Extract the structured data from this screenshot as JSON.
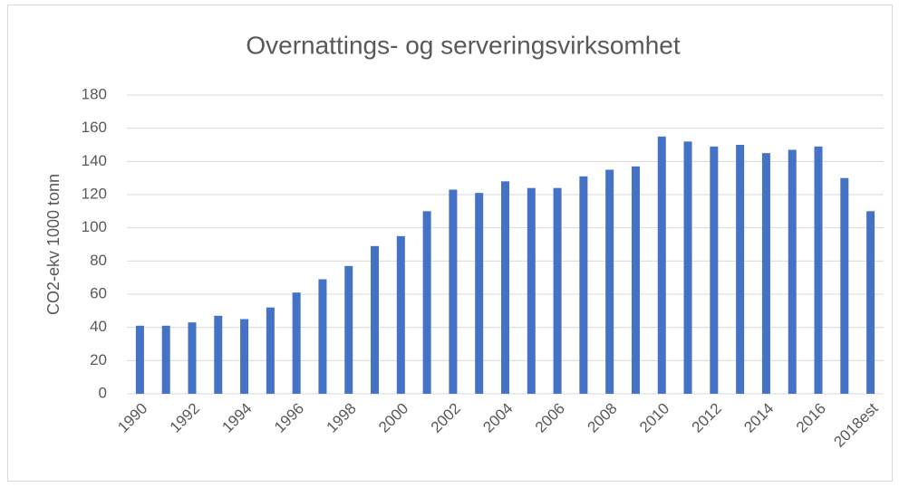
{
  "chart_data": {
    "type": "bar",
    "title": "Overnattings- og serveringsvirksomhet",
    "y_label": "CO2-ekv 1000 tonn",
    "categories": [
      "1990",
      null,
      "1992",
      null,
      "1994",
      null,
      "1996",
      null,
      "1998",
      null,
      "2000",
      null,
      "2002",
      null,
      "2004",
      null,
      "2006",
      null,
      "2008",
      null,
      "2010",
      null,
      "2012",
      null,
      "2014",
      null,
      "2016",
      null,
      "2018est"
    ],
    "values": [
      41,
      41,
      43,
      47,
      45,
      52,
      61,
      69,
      77,
      89,
      95,
      110,
      123,
      121,
      128,
      124,
      124,
      131,
      135,
      137,
      155,
      152,
      149,
      150,
      145,
      147,
      149,
      130,
      110
    ],
    "color": "#4472c4",
    "ylim": [
      0,
      180
    ],
    "yticks": [
      0,
      20,
      40,
      60,
      80,
      100,
      120,
      140,
      160,
      180
    ],
    "grid": true
  }
}
